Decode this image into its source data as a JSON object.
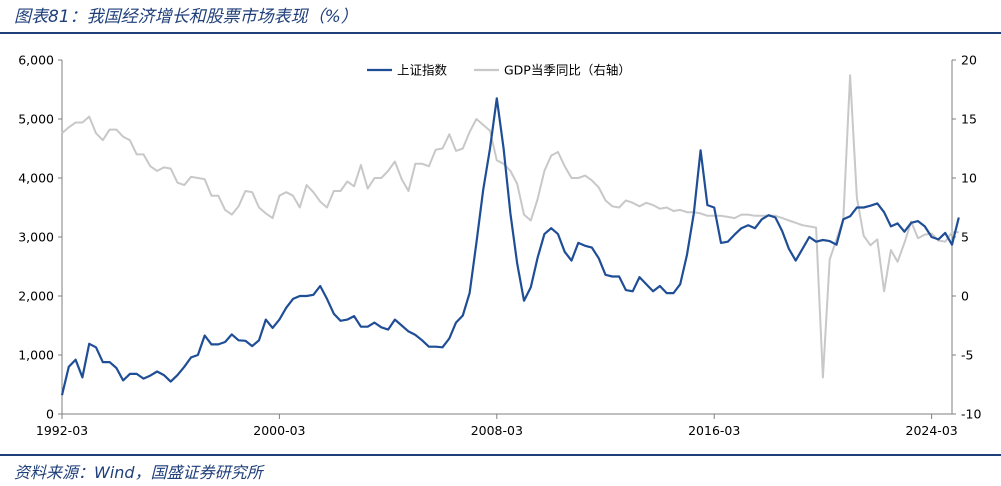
{
  "figure": {
    "title": "图表81：我国经济增长和股票市场表现（%）",
    "source": "资料来源：Wind，国盛证券研究所"
  },
  "colors": {
    "index": "#1f4e96",
    "gdp": "#c8c8c8",
    "accent": "#1f3f7a"
  },
  "chart_data": {
    "type": "line",
    "x_ticks": [
      "1992-03",
      "2000-03",
      "2008-03",
      "2016-03",
      "2024-03"
    ],
    "x_range": [
      "1992-03",
      "2024-12"
    ],
    "y_left": {
      "range": [
        0,
        6000
      ],
      "ticks": [
        "6,000",
        "5,000",
        "4,000",
        "3,000",
        "2,000",
        "1,000",
        "0"
      ]
    },
    "y_right": {
      "range": [
        -10,
        20
      ],
      "ticks": [
        "20",
        "15",
        "10",
        "5",
        "0",
        "-5",
        "-10"
      ]
    },
    "legend_position": "top-center",
    "grid": false,
    "series": [
      {
        "name": "上证指数",
        "axis": "left",
        "color": "#1f4e96",
        "points": [
          [
            "1992-03",
            320
          ],
          [
            "1992-06",
            800
          ],
          [
            "1992-09",
            920
          ],
          [
            "1992-12",
            620
          ],
          [
            "1993-03",
            1190
          ],
          [
            "1993-06",
            1130
          ],
          [
            "1993-09",
            880
          ],
          [
            "1993-12",
            880
          ],
          [
            "1994-03",
            780
          ],
          [
            "1994-06",
            570
          ],
          [
            "1994-09",
            680
          ],
          [
            "1994-12",
            680
          ],
          [
            "1995-03",
            600
          ],
          [
            "1995-06",
            650
          ],
          [
            "1995-09",
            720
          ],
          [
            "1995-12",
            660
          ],
          [
            "1996-03",
            550
          ],
          [
            "1996-06",
            660
          ],
          [
            "1996-09",
            800
          ],
          [
            "1996-12",
            960
          ],
          [
            "1997-03",
            1000
          ],
          [
            "1997-06",
            1330
          ],
          [
            "1997-09",
            1180
          ],
          [
            "1997-12",
            1180
          ],
          [
            "1998-03",
            1220
          ],
          [
            "1998-06",
            1350
          ],
          [
            "1998-09",
            1250
          ],
          [
            "1998-12",
            1240
          ],
          [
            "1999-03",
            1150
          ],
          [
            "1999-06",
            1250
          ],
          [
            "1999-09",
            1600
          ],
          [
            "1999-12",
            1460
          ],
          [
            "2000-03",
            1600
          ],
          [
            "2000-06",
            1800
          ],
          [
            "2000-09",
            1950
          ],
          [
            "2000-12",
            2000
          ],
          [
            "2001-03",
            2000
          ],
          [
            "2001-06",
            2020
          ],
          [
            "2001-09",
            2170
          ],
          [
            "2001-12",
            1950
          ],
          [
            "2002-03",
            1700
          ],
          [
            "2002-06",
            1580
          ],
          [
            "2002-09",
            1600
          ],
          [
            "2002-12",
            1660
          ],
          [
            "2003-03",
            1480
          ],
          [
            "2003-06",
            1480
          ],
          [
            "2003-09",
            1550
          ],
          [
            "2003-12",
            1470
          ],
          [
            "2004-03",
            1430
          ],
          [
            "2004-06",
            1600
          ],
          [
            "2004-09",
            1500
          ],
          [
            "2004-12",
            1400
          ],
          [
            "2005-03",
            1340
          ],
          [
            "2005-06",
            1250
          ],
          [
            "2005-09",
            1140
          ],
          [
            "2005-12",
            1140
          ],
          [
            "2006-03",
            1130
          ],
          [
            "2006-06",
            1280
          ],
          [
            "2006-09",
            1550
          ],
          [
            "2006-12",
            1670
          ],
          [
            "2007-03",
            2050
          ],
          [
            "2007-06",
            2900
          ],
          [
            "2007-09",
            3800
          ],
          [
            "2007-12",
            4500
          ],
          [
            "2008-03",
            5350
          ],
          [
            "2008-06",
            4500
          ],
          [
            "2008-09",
            3400
          ],
          [
            "2008-12",
            2550
          ],
          [
            "2009-03",
            1920
          ],
          [
            "2009-06",
            2150
          ],
          [
            "2009-09",
            2650
          ],
          [
            "2009-12",
            3050
          ],
          [
            "2010-03",
            3150
          ],
          [
            "2010-06",
            3050
          ],
          [
            "2010-09",
            2750
          ],
          [
            "2010-12",
            2600
          ],
          [
            "2011-03",
            2900
          ],
          [
            "2011-06",
            2850
          ],
          [
            "2011-09",
            2820
          ],
          [
            "2011-12",
            2640
          ],
          [
            "2012-03",
            2360
          ],
          [
            "2012-06",
            2330
          ],
          [
            "2012-09",
            2330
          ],
          [
            "2012-12",
            2100
          ],
          [
            "2013-03",
            2080
          ],
          [
            "2013-06",
            2320
          ],
          [
            "2013-09",
            2200
          ],
          [
            "2013-12",
            2080
          ],
          [
            "2014-03",
            2170
          ],
          [
            "2014-06",
            2050
          ],
          [
            "2014-09",
            2050
          ],
          [
            "2014-12",
            2200
          ],
          [
            "2015-03",
            2700
          ],
          [
            "2015-06",
            3400
          ],
          [
            "2015-09",
            4470
          ],
          [
            "2015-12",
            3540
          ],
          [
            "2016-03",
            3500
          ],
          [
            "2016-06",
            2900
          ],
          [
            "2016-09",
            2920
          ],
          [
            "2016-12",
            3040
          ],
          [
            "2017-03",
            3150
          ],
          [
            "2017-06",
            3200
          ],
          [
            "2017-09",
            3150
          ],
          [
            "2017-12",
            3300
          ],
          [
            "2018-03",
            3370
          ],
          [
            "2018-06",
            3330
          ],
          [
            "2018-09",
            3100
          ],
          [
            "2018-12",
            2800
          ],
          [
            "2019-03",
            2600
          ],
          [
            "2019-06",
            2800
          ],
          [
            "2019-09",
            3000
          ],
          [
            "2019-12",
            2920
          ],
          [
            "2020-03",
            2950
          ],
          [
            "2020-06",
            2930
          ],
          [
            "2020-09",
            2870
          ],
          [
            "2020-12",
            3300
          ],
          [
            "2021-03",
            3350
          ],
          [
            "2021-06",
            3500
          ],
          [
            "2021-09",
            3500
          ],
          [
            "2021-12",
            3530
          ],
          [
            "2022-03",
            3570
          ],
          [
            "2022-06",
            3420
          ],
          [
            "2022-09",
            3180
          ],
          [
            "2022-12",
            3230
          ],
          [
            "2023-03",
            3090
          ],
          [
            "2023-06",
            3240
          ],
          [
            "2023-09",
            3270
          ],
          [
            "2023-12",
            3180
          ],
          [
            "2024-03",
            3000
          ],
          [
            "2024-06",
            2960
          ],
          [
            "2024-09",
            3070
          ],
          [
            "2024-12",
            2870
          ],
          [
            "2025-03",
            3330
          ]
        ]
      },
      {
        "name": "GDP当季同比（右轴）",
        "axis": "right",
        "color": "#c8c8c8",
        "points": [
          [
            "1992-03",
            13.8
          ],
          [
            "1992-06",
            14.3
          ],
          [
            "1992-09",
            14.7
          ],
          [
            "1992-12",
            14.7
          ],
          [
            "1993-03",
            15.2
          ],
          [
            "1993-06",
            13.8
          ],
          [
            "1993-09",
            13.2
          ],
          [
            "1993-12",
            14.1
          ],
          [
            "1994-03",
            14.1
          ],
          [
            "1994-06",
            13.5
          ],
          [
            "1994-09",
            13.2
          ],
          [
            "1994-12",
            12.0
          ],
          [
            "1995-03",
            12.0
          ],
          [
            "1995-06",
            11.0
          ],
          [
            "1995-09",
            10.6
          ],
          [
            "1995-12",
            10.9
          ],
          [
            "1996-03",
            10.8
          ],
          [
            "1996-06",
            9.6
          ],
          [
            "1996-09",
            9.4
          ],
          [
            "1996-12",
            10.1
          ],
          [
            "1997-03",
            10.0
          ],
          [
            "1997-06",
            9.9
          ],
          [
            "1997-09",
            8.5
          ],
          [
            "1997-12",
            8.5
          ],
          [
            "1998-03",
            7.3
          ],
          [
            "1998-06",
            6.9
          ],
          [
            "1998-09",
            7.6
          ],
          [
            "1998-12",
            8.9
          ],
          [
            "1999-03",
            8.8
          ],
          [
            "1999-06",
            7.5
          ],
          [
            "1999-09",
            7.0
          ],
          [
            "1999-12",
            6.6
          ],
          [
            "2000-03",
            8.5
          ],
          [
            "2000-06",
            8.8
          ],
          [
            "2000-09",
            8.5
          ],
          [
            "2000-12",
            7.5
          ],
          [
            "2001-03",
            9.4
          ],
          [
            "2001-06",
            8.8
          ],
          [
            "2001-09",
            8.0
          ],
          [
            "2001-12",
            7.5
          ],
          [
            "2002-03",
            8.9
          ],
          [
            "2002-06",
            8.9
          ],
          [
            "2002-09",
            9.7
          ],
          [
            "2002-12",
            9.3
          ],
          [
            "2003-03",
            11.1
          ],
          [
            "2003-06",
            9.1
          ],
          [
            "2003-09",
            10.0
          ],
          [
            "2003-12",
            10.0
          ],
          [
            "2004-03",
            10.6
          ],
          [
            "2004-06",
            11.4
          ],
          [
            "2004-09",
            9.9
          ],
          [
            "2004-12",
            8.9
          ],
          [
            "2005-03",
            11.2
          ],
          [
            "2005-06",
            11.2
          ],
          [
            "2005-09",
            11.0
          ],
          [
            "2005-12",
            12.4
          ],
          [
            "2006-03",
            12.5
          ],
          [
            "2006-06",
            13.7
          ],
          [
            "2006-09",
            12.3
          ],
          [
            "2006-12",
            12.5
          ],
          [
            "2007-03",
            13.9
          ],
          [
            "2007-06",
            15.0
          ],
          [
            "2007-09",
            14.5
          ],
          [
            "2007-12",
            14.0
          ],
          [
            "2008-03",
            11.5
          ],
          [
            "2008-06",
            11.2
          ],
          [
            "2008-09",
            10.6
          ],
          [
            "2008-12",
            9.5
          ],
          [
            "2009-03",
            6.9
          ],
          [
            "2009-06",
            6.4
          ],
          [
            "2009-09",
            8.2
          ],
          [
            "2009-12",
            10.6
          ],
          [
            "2010-03",
            11.9
          ],
          [
            "2010-06",
            12.2
          ],
          [
            "2010-09",
            11.0
          ],
          [
            "2010-12",
            10.0
          ],
          [
            "2011-03",
            10.0
          ],
          [
            "2011-06",
            10.2
          ],
          [
            "2011-09",
            9.8
          ],
          [
            "2011-12",
            9.2
          ],
          [
            "2012-03",
            8.1
          ],
          [
            "2012-06",
            7.6
          ],
          [
            "2012-09",
            7.5
          ],
          [
            "2012-12",
            8.1
          ],
          [
            "2013-03",
            7.9
          ],
          [
            "2013-06",
            7.6
          ],
          [
            "2013-09",
            7.9
          ],
          [
            "2013-12",
            7.7
          ],
          [
            "2014-03",
            7.4
          ],
          [
            "2014-06",
            7.5
          ],
          [
            "2014-09",
            7.2
          ],
          [
            "2014-12",
            7.3
          ],
          [
            "2015-03",
            7.1
          ],
          [
            "2015-06",
            7.1
          ],
          [
            "2015-09",
            7.0
          ],
          [
            "2015-12",
            6.8
          ],
          [
            "2016-03",
            6.8
          ],
          [
            "2016-06",
            6.8
          ],
          [
            "2016-09",
            6.7
          ],
          [
            "2016-12",
            6.6
          ],
          [
            "2017-03",
            6.9
          ],
          [
            "2017-06",
            6.9
          ],
          [
            "2017-09",
            6.8
          ],
          [
            "2017-12",
            6.8
          ],
          [
            "2018-03",
            6.8
          ],
          [
            "2018-06",
            6.8
          ],
          [
            "2018-09",
            6.6
          ],
          [
            "2018-12",
            6.4
          ],
          [
            "2019-03",
            6.2
          ],
          [
            "2019-06",
            6.0
          ],
          [
            "2019-09",
            5.9
          ],
          [
            "2019-12",
            5.8
          ],
          [
            "2020-03",
            -6.9
          ],
          [
            "2020-06",
            3.1
          ],
          [
            "2020-09",
            4.8
          ],
          [
            "2020-12",
            6.5
          ],
          [
            "2021-03",
            18.7
          ],
          [
            "2021-06",
            8.3
          ],
          [
            "2021-09",
            5.1
          ],
          [
            "2021-12",
            4.3
          ],
          [
            "2022-03",
            4.8
          ],
          [
            "2022-06",
            0.4
          ],
          [
            "2022-09",
            3.9
          ],
          [
            "2022-12",
            2.9
          ],
          [
            "2023-03",
            4.5
          ],
          [
            "2023-06",
            6.3
          ],
          [
            "2023-09",
            4.9
          ],
          [
            "2023-12",
            5.2
          ],
          [
            "2024-03",
            5.3
          ],
          [
            "2024-06",
            4.7
          ],
          [
            "2024-09",
            4.6
          ],
          [
            "2024-12",
            5.4
          ],
          [
            "2025-03",
            5.4
          ]
        ]
      }
    ]
  }
}
